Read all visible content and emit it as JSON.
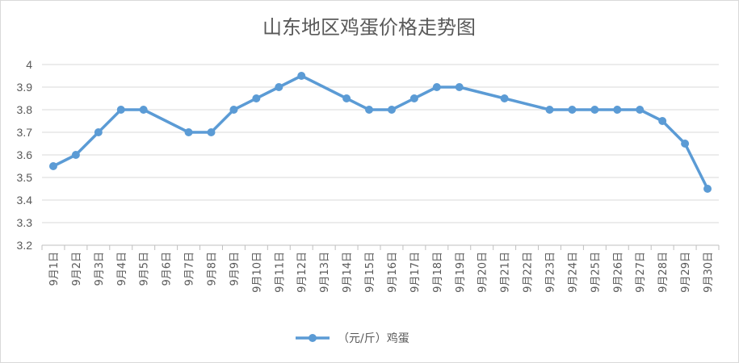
{
  "chart_data": {
    "type": "line",
    "title": "山东地区鸡蛋价格走势图",
    "xlabel": "",
    "ylabel": "",
    "ylim": [
      3.2,
      4.0
    ],
    "yticks": [
      "3.2",
      "3.3",
      "3.4",
      "3.5",
      "3.6",
      "3.7",
      "3.8",
      "3.9",
      "4"
    ],
    "grid": true,
    "legend_position": "bottom",
    "categories": [
      "9月1日",
      "9月2日",
      "9月3日",
      "9月4日",
      "9月5日",
      "9月6日",
      "9月7日",
      "9月8日",
      "9月9日",
      "9月10日",
      "9月11日",
      "9月12日",
      "9月13日",
      "9月14日",
      "9月15日",
      "9月16日",
      "9月17日",
      "9月18日",
      "9月19日",
      "9月20日",
      "9月21日",
      "9月22日",
      "9月23日",
      "9月24日",
      "9月25日",
      "9月26日",
      "9月27日",
      "9月28日",
      "9月29日",
      "9月30日"
    ],
    "series": [
      {
        "name": "（元/斤）鸡蛋",
        "color": "#5b9bd5",
        "values": [
          3.55,
          3.6,
          3.7,
          3.8,
          3.8,
          null,
          3.7,
          3.7,
          3.8,
          3.85,
          3.9,
          3.95,
          null,
          3.85,
          3.8,
          3.8,
          3.85,
          3.9,
          3.9,
          null,
          3.85,
          null,
          3.8,
          3.8,
          3.8,
          3.8,
          3.8,
          3.75,
          3.65,
          3.45
        ]
      }
    ]
  }
}
